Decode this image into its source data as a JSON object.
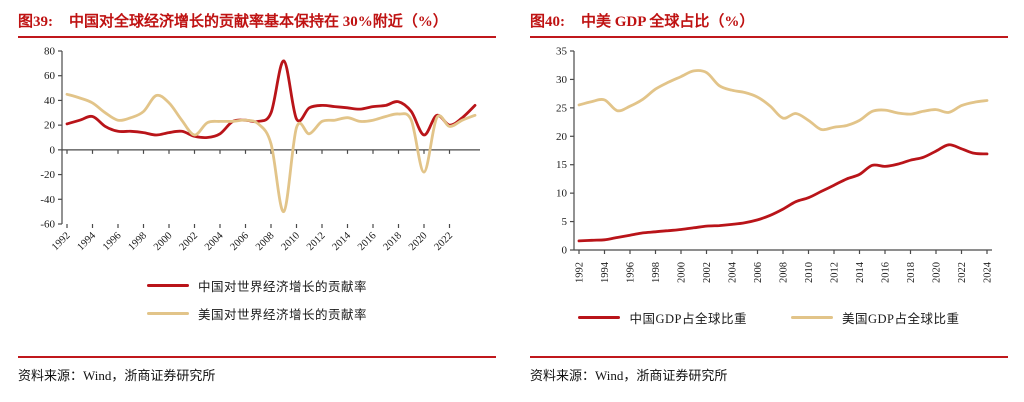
{
  "figures": [
    {
      "label": "图39:",
      "title": "中国对全球经济增长的贡献率基本保持在 30%附近（%）",
      "source": "资料来源：Wind，浙商证券研究所"
    },
    {
      "label": "图40:",
      "title": "中美 GDP 全球占比（%）",
      "source": "资料来源：Wind，浙商证券研究所"
    }
  ],
  "colors": {
    "accent_red": "#c0181c",
    "title_red": "#bf1212",
    "line_red": "#b91419",
    "line_tan": "#e2c489",
    "axis": "#4a4a4a",
    "tick_text": "#1a1a1a"
  },
  "chart_data": [
    {
      "type": "line",
      "title": "中国对全球经济增长的贡献率基本保持在 30%附近（%）",
      "x": [
        1992,
        1993,
        1994,
        1995,
        1996,
        1997,
        1998,
        1999,
        2000,
        2001,
        2002,
        2003,
        2004,
        2005,
        2006,
        2007,
        2008,
        2009,
        2010,
        2011,
        2012,
        2013,
        2014,
        2015,
        2016,
        2017,
        2018,
        2019,
        2020,
        2021,
        2022,
        2023,
        2024
      ],
      "series": [
        {
          "name": "中国对世界经济增长的贡献率",
          "color": "#b91419",
          "values": [
            21,
            24,
            27,
            19,
            15,
            15,
            14,
            12,
            14,
            15,
            11,
            10,
            13,
            23,
            24,
            23,
            30,
            72,
            25,
            34,
            36,
            35,
            34,
            33,
            35,
            36,
            39,
            31,
            12,
            28,
            20,
            26,
            36
          ]
        },
        {
          "name": "美国对世界经济增长的贡献率",
          "color": "#e2c489",
          "values": [
            45,
            42,
            38,
            30,
            24,
            26,
            31,
            44,
            38,
            24,
            12,
            22,
            23,
            23,
            24,
            21,
            5,
            -50,
            18,
            13,
            23,
            24,
            26,
            23,
            24,
            27,
            29,
            24,
            -18,
            26,
            19,
            24,
            28
          ]
        }
      ],
      "ylim": [
        -60,
        80
      ],
      "yticks": [
        -60,
        -40,
        -20,
        0,
        20,
        40,
        60,
        80
      ],
      "xticks": [
        1992,
        1994,
        1996,
        1998,
        2000,
        2002,
        2004,
        2006,
        2008,
        2010,
        2012,
        2014,
        2016,
        2018,
        2020,
        2022
      ],
      "x_tick_rotation": -45,
      "zero_axis": true,
      "grid": false,
      "legend_position": "bottom-stacked"
    },
    {
      "type": "line",
      "title": "中美 GDP 全球占比（%）",
      "x": [
        1992,
        1993,
        1994,
        1995,
        1996,
        1997,
        1998,
        1999,
        2000,
        2001,
        2002,
        2003,
        2004,
        2005,
        2006,
        2007,
        2008,
        2009,
        2010,
        2011,
        2012,
        2013,
        2014,
        2015,
        2016,
        2017,
        2018,
        2019,
        2020,
        2021,
        2022,
        2023,
        2024
      ],
      "series": [
        {
          "name": "中国GDP占全球比重",
          "color": "#b91419",
          "values": [
            1.6,
            1.7,
            1.8,
            2.2,
            2.6,
            3.0,
            3.2,
            3.4,
            3.6,
            3.9,
            4.2,
            4.3,
            4.5,
            4.8,
            5.3,
            6.1,
            7.2,
            8.5,
            9.2,
            10.3,
            11.4,
            12.5,
            13.3,
            14.9,
            14.7,
            15.1,
            15.8,
            16.3,
            17.4,
            18.5,
            17.8,
            17.0,
            16.9
          ]
        },
        {
          "name": "美国GDP占全球比重",
          "color": "#e2c489",
          "values": [
            25.5,
            26.1,
            26.4,
            24.5,
            25.3,
            26.5,
            28.3,
            29.5,
            30.5,
            31.5,
            31.2,
            28.9,
            28.1,
            27.7,
            26.9,
            25.3,
            23.2,
            24.0,
            22.8,
            21.2,
            21.6,
            21.9,
            22.8,
            24.4,
            24.6,
            24.1,
            23.9,
            24.4,
            24.7,
            24.2,
            25.4,
            26.0,
            26.3
          ]
        }
      ],
      "ylim": [
        0,
        35
      ],
      "yticks": [
        0,
        5,
        10,
        15,
        20,
        25,
        30,
        35
      ],
      "xticks": [
        1992,
        1994,
        1996,
        1998,
        2000,
        2002,
        2004,
        2006,
        2008,
        2010,
        2012,
        2014,
        2016,
        2018,
        2020,
        2022,
        2024
      ],
      "x_tick_rotation": -90,
      "zero_axis": false,
      "grid": false,
      "legend_position": "bottom-horizontal"
    }
  ]
}
